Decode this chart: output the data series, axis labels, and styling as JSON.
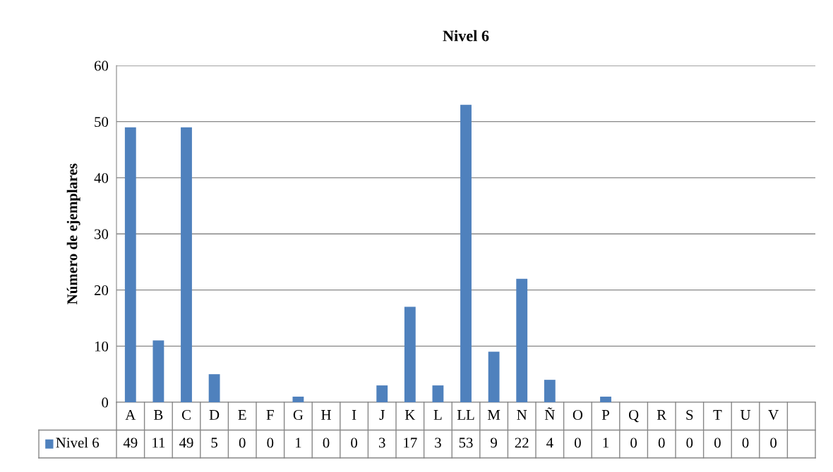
{
  "chart_data": {
    "type": "bar",
    "title": "Nivel 6",
    "ylabel": "Número de ejemplares",
    "categories": [
      "A",
      "B",
      "C",
      "D",
      "E",
      "F",
      "G",
      "H",
      "I",
      "J",
      "K",
      "L",
      "LL",
      "M",
      "N",
      "Ñ",
      "O",
      "P",
      "Q",
      "R",
      "S",
      "T",
      "U",
      "V",
      null
    ],
    "series": [
      {
        "name": "Nivel 6",
        "color": "#4f81bd",
        "values": [
          49,
          11,
          49,
          5,
          0,
          0,
          1,
          0,
          0,
          3,
          17,
          3,
          53,
          9,
          22,
          4,
          0,
          1,
          0,
          0,
          0,
          0,
          0,
          0,
          null
        ]
      }
    ],
    "ylim": [
      0,
      60
    ],
    "yticks": [
      0,
      10,
      20,
      30,
      40,
      50,
      60
    ],
    "grid": "y",
    "legend": "bottom",
    "data_labels": true
  }
}
